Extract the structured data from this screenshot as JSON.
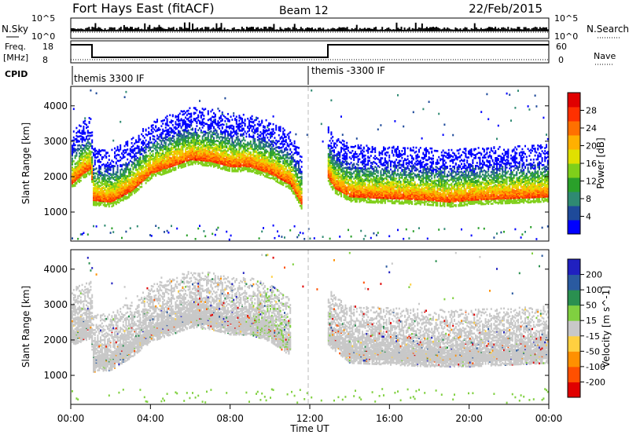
{
  "header": {
    "station": "Fort Hays East (fitACF)",
    "beam": "Beam 12",
    "date": "22/Feb/2015"
  },
  "nsky_panel": {
    "left_label": "N.Sky",
    "left_ticks": [
      "10^5",
      "10^0"
    ],
    "right_label": "N.Search",
    "right_ticks": [
      "10^5",
      "10^0"
    ]
  },
  "freq_panel": {
    "left_label_top": "Freq.",
    "left_label_bottom": "[MHz]",
    "left_ticks": [
      "18",
      "8"
    ],
    "right_label": "Nave",
    "right_ticks": [
      "60",
      "0"
    ],
    "cpid_label": "CPID"
  },
  "cpid_segments": [
    {
      "label": "themis 3300 IF",
      "start_hour": 0
    },
    {
      "label": "themis -3300 IF",
      "start_hour": 12
    }
  ],
  "time_axis": {
    "label": "Time UT",
    "ticks": [
      "00:00",
      "04:00",
      "08:00",
      "12:00",
      "16:00",
      "20:00",
      "00:00"
    ]
  },
  "chart_data": [
    {
      "type": "heatmap",
      "name": "power",
      "ylabel": "Slant Range [km]",
      "xlim": [
        0,
        24
      ],
      "ylim": [
        180,
        4550
      ],
      "yticks": [
        "1000",
        "2000",
        "3000",
        "4000"
      ],
      "colorbar": {
        "label": "Power [dB]",
        "ticks": [
          "4",
          "8",
          "12",
          "16",
          "20",
          "24",
          "28"
        ],
        "colors": [
          "#0000ff",
          "#1e4a9a",
          "#2f8a72",
          "#2aa02a",
          "#7fcf1a",
          "#e0e000",
          "#ffb000",
          "#ff7000",
          "#ff3000",
          "#e00000"
        ],
        "range": [
          0,
          30
        ]
      },
      "features": [
        {
          "x": [
            0.0,
            0.6,
            1.0,
            1.1,
            2.0,
            3.0,
            4.0,
            5.0,
            6.0,
            7.0,
            8.0,
            9.0,
            10.0,
            11.0,
            11.6
          ],
          "y": [
            1800,
            2100,
            2250,
            1350,
            1300,
            1600,
            2100,
            2300,
            2500,
            2450,
            2300,
            2300,
            2100,
            1800,
            1200
          ]
        },
        {
          "x": [
            12.9,
            13.2,
            14.0,
            15.0,
            16.0,
            17.0,
            18.0,
            19.0,
            20.0,
            21.0,
            22.0,
            23.0,
            24.0
          ],
          "y": [
            2000,
            1700,
            1450,
            1420,
            1400,
            1380,
            1350,
            1300,
            1350,
            1380,
            1400,
            1420,
            1450
          ]
        }
      ]
    },
    {
      "type": "heatmap",
      "name": "velocity",
      "ylabel": "Slant Range [km]",
      "xlim": [
        0,
        24
      ],
      "ylim": [
        180,
        4550
      ],
      "yticks": [
        "1000",
        "2000",
        "3000",
        "4000"
      ],
      "colorbar": {
        "label": "Velocity [m s^-1]",
        "ticks": [
          "-200",
          "-100",
          "-50",
          "-15",
          "15",
          "50",
          "100",
          "200"
        ],
        "colors": [
          "#e00000",
          "#ff5000",
          "#ff9000",
          "#ffd040",
          "#c8c8c8",
          "#80d040",
          "#2a9050",
          "#2a5aa0",
          "#2020c0"
        ],
        "range": [
          -250,
          250
        ]
      },
      "features": [
        {
          "x": [
            0.0,
            1.0,
            1.1,
            2.0,
            3.0,
            4.0,
            5.0,
            6.0,
            7.0,
            8.0,
            9.0,
            10.0,
            11.0
          ],
          "y": [
            2000,
            2200,
            1250,
            1300,
            1650,
            2100,
            2300,
            2500,
            2450,
            2300,
            2300,
            2100,
            1700
          ]
        },
        {
          "x": [
            12.9,
            14.0,
            16.0,
            18.0,
            20.0,
            22.0,
            24.0
          ],
          "y": [
            2000,
            1500,
            1450,
            1400,
            1400,
            1450,
            1500
          ]
        }
      ]
    }
  ]
}
